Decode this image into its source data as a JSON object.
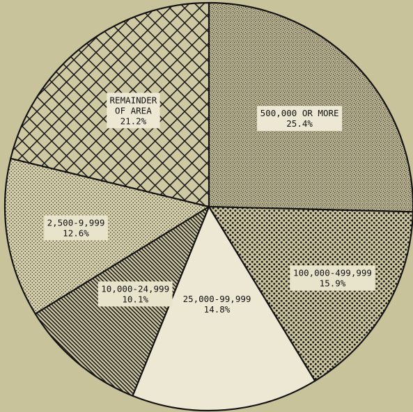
{
  "chart_data": {
    "type": "pie",
    "slices": [
      {
        "label_lines": [
          "500,000 OR MORE"
        ],
        "value_label": "25.4%",
        "value": 25.4
      },
      {
        "label_lines": [
          "100,000-499,999"
        ],
        "value_label": "15.9%",
        "value": 15.9
      },
      {
        "label_lines": [
          "25,000-99,999"
        ],
        "value_label": "14.8%",
        "value": 14.8
      },
      {
        "label_lines": [
          "10,000-24,999"
        ],
        "value_label": "10.1%",
        "value": 10.1
      },
      {
        "label_lines": [
          "2,500-9,999"
        ],
        "value_label": "12.6%",
        "value": 12.6
      },
      {
        "label_lines": [
          "REMAINDER",
          "OF AREA"
        ],
        "value_label": "21.2%",
        "value": 21.2
      }
    ],
    "fill_styles": [
      "stipple-dense",
      "dots-large",
      "plain",
      "diagonal-hatch",
      "dots-fine",
      "crosshatch"
    ],
    "colors": {
      "background": "#c9c39b",
      "slice_base": "#cfc9a3",
      "plain_slice": "#ece8d4",
      "ink": "#141414"
    },
    "start_angle_deg": 0,
    "legend": "none"
  }
}
